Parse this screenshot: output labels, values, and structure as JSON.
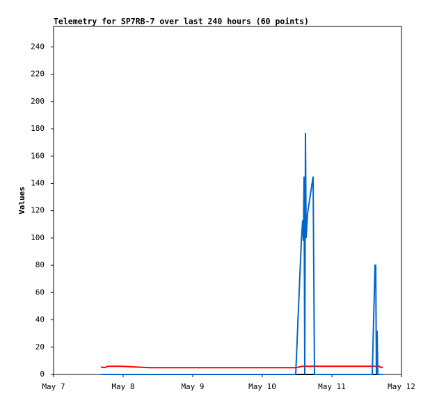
{
  "chart_data": {
    "type": "line",
    "title": "Telemetry for SP7RB-7 over last 240 hours (60 points)",
    "y_label": "Values",
    "xlim": [
      0,
      5
    ],
    "xticks": [
      {
        "value": 0,
        "label": "May 7"
      },
      {
        "value": 1,
        "label": "May 8"
      },
      {
        "value": 2,
        "label": "May 9"
      },
      {
        "value": 3,
        "label": "May 10"
      },
      {
        "value": 4,
        "label": "May 11"
      },
      {
        "value": 5,
        "label": "May 12"
      }
    ],
    "ylim": [
      0,
      255
    ],
    "yticks": [
      0,
      20,
      40,
      60,
      80,
      100,
      120,
      140,
      160,
      180,
      200,
      220,
      240
    ],
    "grid": false,
    "series": [
      {
        "color": "#000000",
        "x": [
          0.68,
          4.73
        ],
        "values": [
          0,
          0
        ]
      },
      {
        "color": "#ff0000",
        "x": [
          0.68,
          0.73,
          0.78,
          0.98,
          1.38,
          3.48,
          3.58,
          4.68,
          4.71,
          4.73
        ],
        "values": [
          5.5,
          5,
          6,
          6,
          5,
          5,
          6,
          6,
          5,
          5.5
        ]
      },
      {
        "color": "#0066cc",
        "x": [
          0.68,
          3.48,
          3.56,
          3.58,
          3.59,
          3.6,
          3.61,
          3.62,
          3.63,
          3.65,
          3.73,
          3.75,
          4.58,
          4.62,
          4.63,
          4.64,
          4.65,
          4.66,
          4.73
        ],
        "values": [
          0,
          0,
          97,
          113,
          98,
          145,
          0,
          177,
          100,
          118,
          145,
          0,
          0,
          80,
          80,
          0,
          32,
          0,
          0
        ]
      }
    ]
  }
}
